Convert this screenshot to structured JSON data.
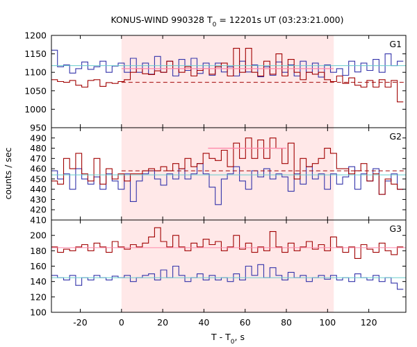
{
  "chart_data": {
    "type": "line",
    "title_main": "KONUS-WIND 990328 T",
    "title_sub": "0",
    "title_rest": " = 12201s UT (03:23:21.000)",
    "ylabel": "counts / sec",
    "xlabel_main": "T - T",
    "xlabel_sub": "0",
    "xlabel_rest": ", s",
    "xlim": [
      -34,
      138
    ],
    "xticks": [
      -20,
      0,
      20,
      40,
      60,
      80,
      100,
      120
    ],
    "shaded_interval": [
      0,
      103
    ],
    "bin_width": 2.944,
    "colors": {
      "dark_red": "#a00000",
      "blue": "#3333aa",
      "cyan": "#66cccc",
      "pink": "#ff88aa",
      "shade": "#ffe8e8"
    },
    "panels": [
      {
        "name": "G1",
        "ylim": [
          950,
          1200
        ],
        "yticks": [
          950,
          1000,
          1050,
          1100,
          1150,
          1200
        ],
        "background_levels": [
          {
            "name": "G1 background (blue channel)",
            "value": 1118,
            "color": "#66cccc"
          },
          {
            "name": "G1 background (red channel)",
            "value": 1073,
            "color": "#a00000",
            "dashed": true
          }
        ],
        "signal_level": {
          "value": 1110,
          "x_range": [
            0,
            103
          ],
          "color": "#ff88aa"
        },
        "series": [
          {
            "color": "#3333aa",
            "values": [
              1160,
              1115,
              1120,
              1098,
              1110,
              1128,
              1108,
              1115,
              1130,
              1100,
              1117,
              1125,
              1100,
              1138,
              1100,
              1125,
              1095,
              1143,
              1100,
              1130,
              1090,
              1135,
              1105,
              1138,
              1097,
              1125,
              1092,
              1125,
              1101,
              1115,
              1090,
              1130,
              1101,
              1120,
              1088,
              1115,
              1092,
              1128,
              1100,
              1120,
              1090,
              1130,
              1100,
              1125,
              1087,
              1120,
              1100,
              1110,
              1092,
              1130,
              1101,
              1125,
              1105,
              1135,
              1100,
              1150,
              1118,
              1130
            ]
          },
          {
            "color": "#a00000",
            "values": [
              1080,
              1075,
              1073,
              1078,
              1065,
              1060,
              1078,
              1080,
              1062,
              1072,
              1070,
              1075,
              1080,
              1100,
              1110,
              1096,
              1094,
              1104,
              1100,
              1130,
              1110,
              1100,
              1115,
              1090,
              1105,
              1110,
              1095,
              1115,
              1125,
              1090,
              1165,
              1100,
              1165,
              1100,
              1090,
              1130,
              1095,
              1150,
              1090,
              1135,
              1100,
              1080,
              1100,
              1095,
              1100,
              1080,
              1075,
              1090,
              1070,
              1085,
              1065,
              1060,
              1078,
              1060,
              1080,
              1060,
              1078,
              1020
            ]
          }
        ]
      },
      {
        "name": "G2",
        "ylim": [
          410,
          500
        ],
        "yticks": [
          410,
          420,
          430,
          440,
          450,
          460,
          470,
          480,
          490
        ],
        "background_levels": [
          {
            "name": "G2 background (blue channel)",
            "value": 454,
            "color": "#66cccc"
          },
          {
            "name": "G2 background (red channel)",
            "value": 458,
            "color": "#a00000",
            "dashed": true
          }
        ],
        "signal_level": {
          "value": 480,
          "x_range": [
            42,
            80
          ],
          "color": "#ff88aa"
        },
        "series": [
          {
            "color": "#3333aa",
            "values": [
              458,
              450,
              455,
              440,
              460,
              450,
              445,
              452,
              440,
              455,
              448,
              440,
              455,
              428,
              448,
              455,
              458,
              450,
              444,
              455,
              450,
              460,
              450,
              455,
              465,
              455,
              442,
              425,
              450,
              455,
              462,
              448,
              440,
              458,
              452,
              460,
              450,
              455,
              452,
              438,
              455,
              445,
              462,
              450,
              455,
              440,
              455,
              445,
              452,
              462,
              440,
              455,
              448,
              460,
              435,
              448,
              455,
              440
            ]
          },
          {
            "color": "#a00000",
            "values": [
              448,
              445,
              470,
              460,
              475,
              455,
              448,
              470,
              445,
              460,
              450,
              455,
              448,
              455,
              455,
              458,
              460,
              458,
              462,
              458,
              465,
              460,
              470,
              462,
              465,
              475,
              470,
              468,
              478,
              462,
              485,
              470,
              490,
              470,
              488,
              470,
              490,
              480,
              465,
              485,
              450,
              470,
              462,
              465,
              470,
              480,
              475,
              460,
              460,
              455,
              458,
              465,
              448,
              455,
              435,
              450,
              445,
              440
            ]
          }
        ]
      },
      {
        "name": "G3",
        "ylim": [
          100,
          220
        ],
        "yticks": [
          100,
          120,
          140,
          160,
          180,
          200
        ],
        "background_levels": [
          {
            "name": "G3 background (blue channel)",
            "value": 145,
            "color": "#66cccc"
          },
          {
            "name": "G3 background (red channel)",
            "value": 184,
            "color": "#ff88aa"
          }
        ],
        "signal_level": null,
        "series": [
          {
            "color": "#3333aa",
            "values": [
              148,
              145,
              142,
              148,
              135,
              145,
              142,
              148,
              145,
              142,
              147,
              145,
              148,
              140,
              145,
              148,
              150,
              142,
              155,
              145,
              160,
              148,
              140,
              145,
              150,
              142,
              148,
              142,
              145,
              140,
              150,
              142,
              160,
              148,
              162,
              145,
              158,
              148,
              142,
              152,
              145,
              148,
              140,
              145,
              148,
              143,
              148,
              142,
              145,
              140,
              150,
              145,
              142,
              148,
              140,
              145,
              138,
              130
            ]
          },
          {
            "color": "#a00000",
            "values": [
              185,
              178,
              182,
              180,
              185,
              188,
              180,
              190,
              185,
              178,
              192,
              185,
              182,
              188,
              185,
              190,
              198,
              210,
              192,
              185,
              200,
              185,
              180,
              190,
              185,
              195,
              188,
              192,
              180,
              185,
              200,
              182,
              190,
              178,
              185,
              180,
              205,
              185,
              178,
              190,
              180,
              185,
              192,
              182,
              188,
              180,
              198,
              185,
              178,
              185,
              170,
              188,
              182,
              178,
              190,
              180,
              175,
              185
            ]
          }
        ]
      }
    ]
  }
}
